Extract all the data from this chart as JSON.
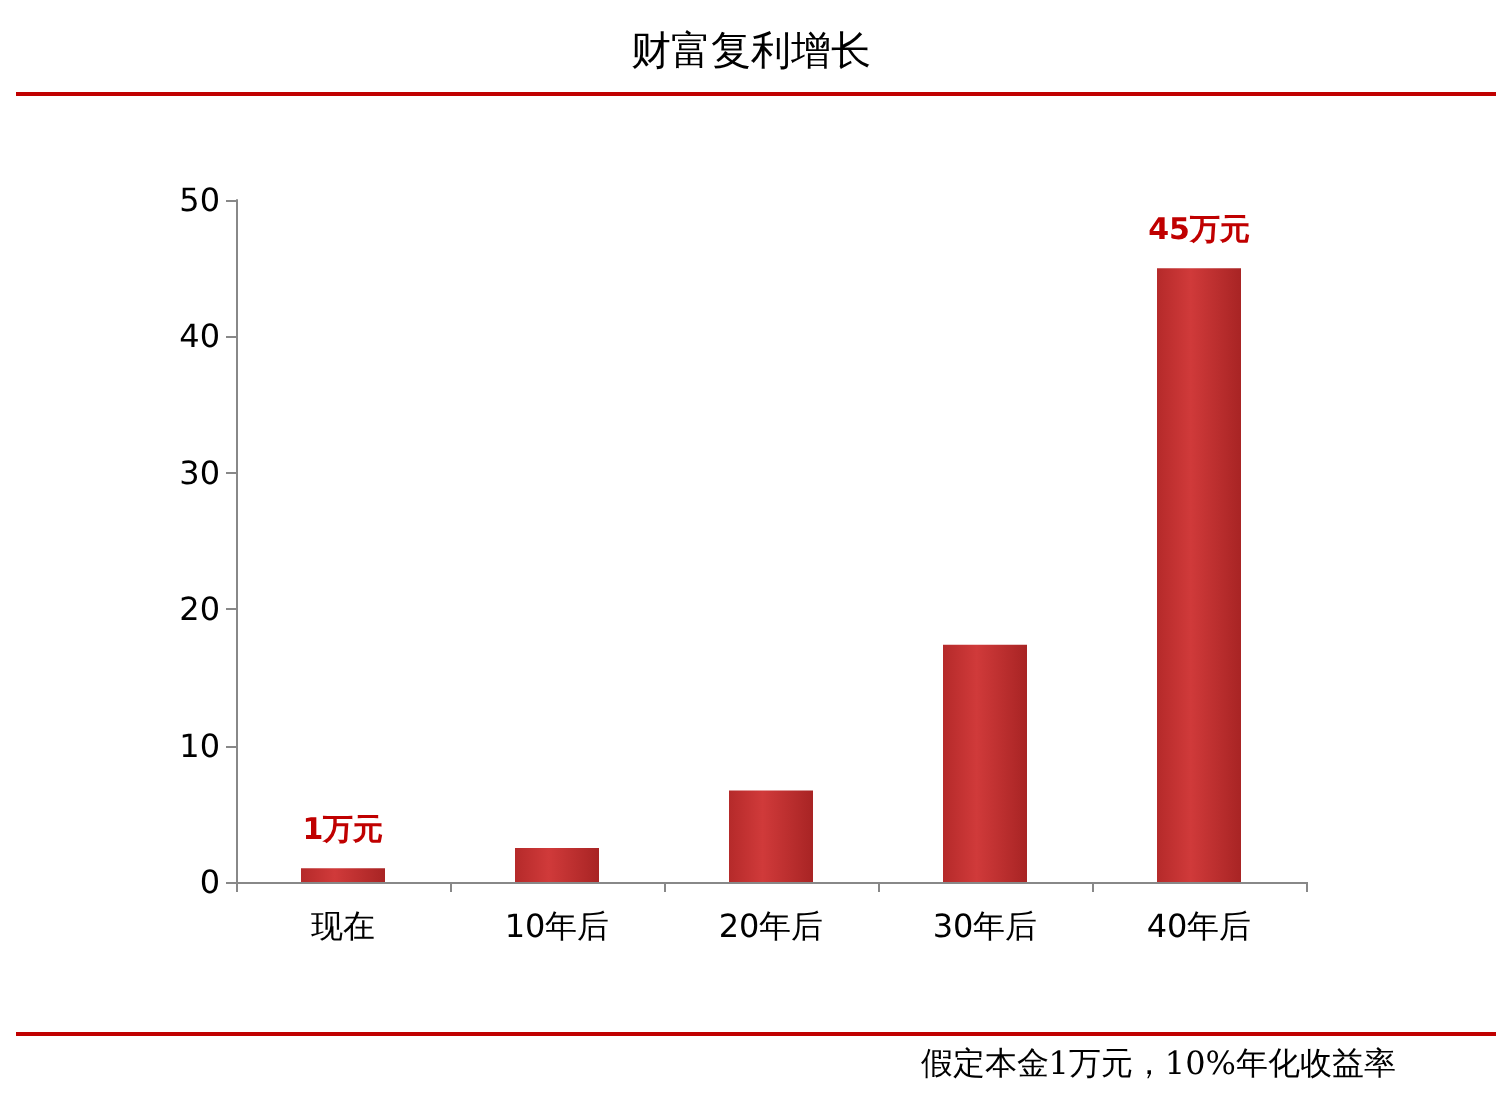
{
  "chart_data": {
    "type": "bar",
    "title": "财富复利增长",
    "categories": [
      "现在",
      "10年后",
      "20年后",
      "30年后",
      "40年后"
    ],
    "values": [
      1,
      2.5,
      6.7,
      17.4,
      45
    ],
    "value_labels": [
      "1万元",
      null,
      null,
      null,
      "45万元"
    ],
    "color": "#d03a3a",
    "ylim": [
      0,
      50
    ],
    "yticks": [
      0,
      10,
      20,
      30,
      40,
      50
    ],
    "grid": false,
    "annotations": [
      "假定本金1万元，10%年化收益率"
    ]
  }
}
